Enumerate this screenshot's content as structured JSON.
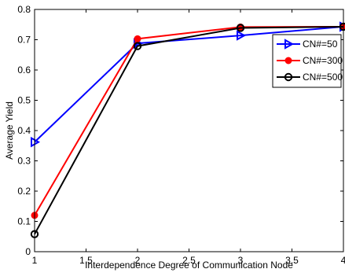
{
  "chart_data": {
    "type": "line",
    "xlabel": "Interdependence Degree of Communication Node",
    "ylabel": "Average Yield",
    "xlim": [
      1,
      4
    ],
    "ylim": [
      0,
      0.8
    ],
    "x_ticks": [
      "1",
      "1.5",
      "2",
      "2.5",
      "3",
      "3.5",
      "4"
    ],
    "y_ticks": [
      "0",
      "0.1",
      "0.2",
      "0.3",
      "0.4",
      "0.5",
      "0.6",
      "0.7",
      "0.8"
    ],
    "grid": false,
    "legend_position": "top-right",
    "series": [
      {
        "name": "CN#=50",
        "color": "#0000ff",
        "marker": "triangle-right",
        "x": [
          1,
          2,
          3,
          4
        ],
        "y": [
          0.362,
          0.688,
          0.714,
          0.743
        ]
      },
      {
        "name": "CN#=300",
        "color": "#ff0000",
        "marker": "filled-circle",
        "x": [
          1,
          2,
          3,
          4
        ],
        "y": [
          0.12,
          0.703,
          0.742,
          0.743
        ]
      },
      {
        "name": "CN#=500",
        "color": "#000000",
        "marker": "open-circle",
        "x": [
          1,
          2,
          3,
          4
        ],
        "y": [
          0.058,
          0.679,
          0.739,
          0.743
        ]
      }
    ]
  }
}
